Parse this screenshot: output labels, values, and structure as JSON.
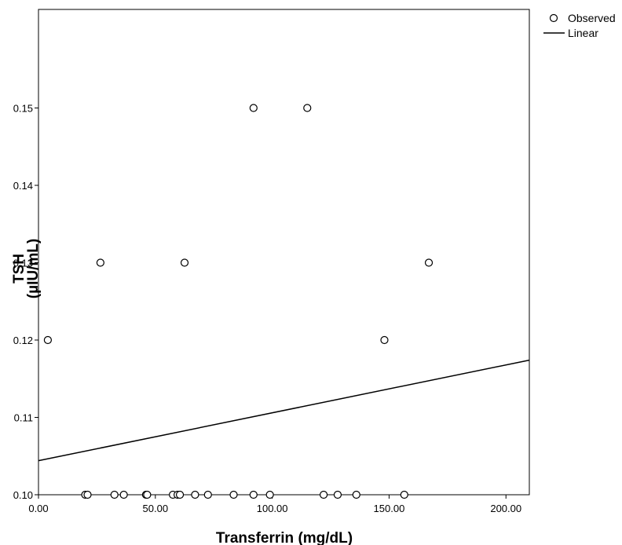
{
  "chart_data": {
    "type": "scatter",
    "xlabel": "Transferrin (mg/dL)",
    "ylabel_lines": [
      "TSH",
      "(µIU/mL)"
    ],
    "xlim": [
      0,
      210
    ],
    "ylim": [
      0.1,
      0.153
    ],
    "x_ticks": [
      0,
      50,
      100,
      150,
      200
    ],
    "x_tick_labels": [
      "0.00",
      "50.00",
      "100.00",
      "150.00",
      "200.00"
    ],
    "y_ticks": [
      0.1,
      0.11,
      0.12,
      0.13,
      0.14,
      0.15
    ],
    "y_tick_labels": [
      "0.10",
      "0.11",
      "0.12",
      "0.13",
      "0.14",
      "0.15"
    ],
    "grid": false,
    "legend_position": "top-right",
    "legend": [
      {
        "label": "Observed",
        "marker": "open-circle"
      },
      {
        "label": "Linear",
        "marker": "line"
      }
    ],
    "series": [
      {
        "name": "Observed",
        "type": "scatter",
        "points": [
          [
            92,
            0.15
          ],
          [
            115,
            0.15
          ],
          [
            26.5,
            0.13
          ],
          [
            62.5,
            0.13
          ],
          [
            167,
            0.13
          ],
          [
            4,
            0.12
          ],
          [
            148,
            0.12
          ],
          [
            20,
            0.1
          ],
          [
            21,
            0.1
          ],
          [
            32.5,
            0.1
          ],
          [
            36.5,
            0.1
          ],
          [
            46,
            0.1
          ],
          [
            46.5,
            0.1
          ],
          [
            57.5,
            0.1
          ],
          [
            59.5,
            0.1
          ],
          [
            60.5,
            0.1
          ],
          [
            67,
            0.1
          ],
          [
            72.5,
            0.1
          ],
          [
            83.5,
            0.1
          ],
          [
            92,
            0.1
          ],
          [
            99,
            0.1
          ],
          [
            122,
            0.1
          ],
          [
            128,
            0.1
          ],
          [
            136,
            0.1
          ],
          [
            156.5,
            0.1
          ]
        ]
      },
      {
        "name": "Linear",
        "type": "line",
        "points": [
          [
            0,
            0.1044
          ],
          [
            210,
            0.1174
          ]
        ]
      }
    ]
  }
}
